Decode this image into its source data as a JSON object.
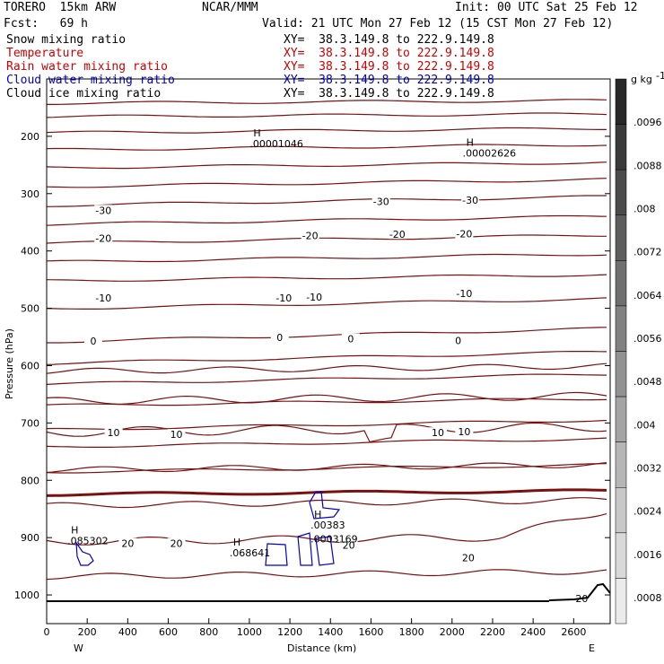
{
  "header": {
    "model": "TORERO  15km ARW",
    "center": "NCAR/MMM",
    "init": "Init: 00 UTC Sat 25 Feb 12",
    "fcst": "Fcst:   69 h",
    "valid": "Valid: 21 UTC Mon 27 Feb 12 (15 CST Mon 27 Feb 12)"
  },
  "legend": [
    {
      "name": "Snow mixing ratio",
      "xy": "XY=  38.3.149.8 to 222.9.149.8",
      "color": "#000000"
    },
    {
      "name": "Temperature",
      "xy": "XY=  38.3.149.8 to 222.9.149.8",
      "color": "#cc0000"
    },
    {
      "name": "Rain water mixing ratio",
      "xy": "XY=  38.3.149.8 to 222.9.149.8",
      "color": "#cc0000"
    },
    {
      "name": "Cloud water mixing ratio",
      "xy": "XY=  38.3.149.8 to 222.9.149.8",
      "color": "#0000cc"
    },
    {
      "name": "Cloud ice mixing ratio",
      "xy": "XY=  38.3.149.8 to 222.9.149.8",
      "color": "#000000"
    }
  ],
  "chart_data": {
    "type": "contour",
    "xlabel": "Distance (km)",
    "ylabel": "Pressure (hPa)",
    "xlim": [
      0,
      2780
    ],
    "ylim": [
      1050,
      100
    ],
    "x_ticks": [
      0,
      200,
      400,
      600,
      800,
      1000,
      1200,
      1400,
      1600,
      1800,
      2000,
      2200,
      2400,
      2600
    ],
    "y_ticks": [
      200,
      300,
      400,
      500,
      600,
      700,
      800,
      900,
      1000
    ],
    "x_end_labels": {
      "left": "W",
      "right": "E"
    },
    "colorbar": {
      "unit": "g kg",
      "unit_sup": "-1",
      "ticks": [
        ".0096",
        ".0088",
        ".008",
        ".0072",
        ".0064",
        ".0056",
        ".0048",
        ".004",
        ".0032",
        ".0024",
        ".0016",
        ".0008"
      ]
    },
    "temperature_contour_labels": [
      {
        "x": 280,
        "p": 329,
        "text": "-30"
      },
      {
        "x": 1650,
        "p": 314,
        "text": "-30"
      },
      {
        "x": 2090,
        "p": 311,
        "text": "-30"
      },
      {
        "x": 280,
        "p": 378,
        "text": "-20"
      },
      {
        "x": 1300,
        "p": 373,
        "text": "-20"
      },
      {
        "x": 1730,
        "p": 371,
        "text": "-20"
      },
      {
        "x": 2060,
        "p": 370,
        "text": "-20"
      },
      {
        "x": 280,
        "p": 482,
        "text": "-10"
      },
      {
        "x": 1170,
        "p": 482,
        "text": "-10"
      },
      {
        "x": 1320,
        "p": 480,
        "text": "-10"
      },
      {
        "x": 2060,
        "p": 474,
        "text": "-10"
      },
      {
        "x": 230,
        "p": 557,
        "text": "0"
      },
      {
        "x": 1150,
        "p": 551,
        "text": "0"
      },
      {
        "x": 1500,
        "p": 553,
        "text": "0"
      },
      {
        "x": 2030,
        "p": 556,
        "text": "0"
      },
      {
        "x": 330,
        "p": 717,
        "text": "10"
      },
      {
        "x": 640,
        "p": 720,
        "text": "10"
      },
      {
        "x": 1930,
        "p": 717,
        "text": "10"
      },
      {
        "x": 2060,
        "p": 715,
        "text": "10"
      },
      {
        "x": 400,
        "p": 910,
        "text": "20"
      },
      {
        "x": 640,
        "p": 910,
        "text": "20"
      },
      {
        "x": 1490,
        "p": 913,
        "text": "20"
      },
      {
        "x": 2080,
        "p": 935,
        "text": "20"
      },
      {
        "x": 2640,
        "p": 1006,
        "text": "20"
      }
    ],
    "extrema": [
      {
        "x": 1020,
        "p": 213,
        "mark": "H",
        "value": ".00001046",
        "color": "#000000"
      },
      {
        "x": 2070,
        "p": 229,
        "mark": "H",
        "value": ".00002626",
        "color": "#000000"
      },
      {
        "x": 1320,
        "p": 878,
        "mark": "H",
        "value": ".00383",
        "color": "#cc0000"
      },
      {
        "x": 1320,
        "p": 902,
        "mark": "",
        "value": ".0003169",
        "color": "#cc0000"
      },
      {
        "x": 120,
        "p": 905,
        "mark": "H",
        "value": ".085302",
        "color": "#0000cc"
      },
      {
        "x": 920,
        "p": 926,
        "mark": "H",
        "value": ".068641",
        "color": "#0000cc"
      }
    ]
  }
}
